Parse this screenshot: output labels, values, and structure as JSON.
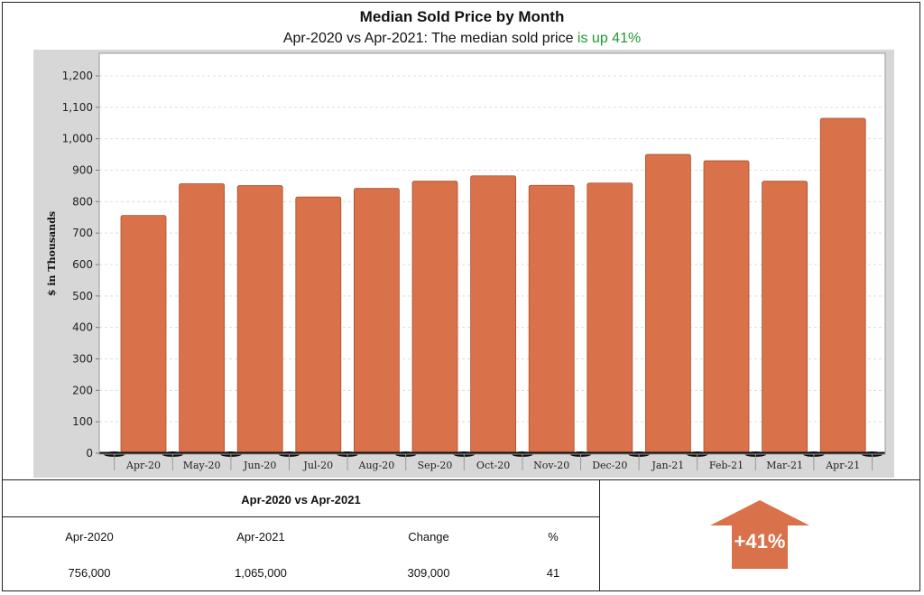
{
  "header": {
    "title": "Median Sold Price by Month",
    "subtitle_prefix": "Apr-2020 vs Apr-2021: The median sold price ",
    "subtitle_highlight": "is up 41%"
  },
  "colors": {
    "bar": "#d9714a",
    "highlight": "#1e9a32",
    "plot_bg": "#ffffff",
    "outer_bg": "#d7d7d7"
  },
  "chart_data": {
    "type": "bar",
    "title": "Median Sold Price by Month",
    "ylabel": "$ in Thousands",
    "xlabel": "",
    "ylim": [
      0,
      1250
    ],
    "yticks": [
      0,
      100,
      200,
      300,
      400,
      500,
      600,
      700,
      800,
      900,
      1000,
      1100,
      1200
    ],
    "ytick_labels": [
      "0",
      "100",
      "200",
      "300",
      "400",
      "500",
      "600",
      "700",
      "800",
      "900",
      "1,000",
      "1,100",
      "1,200"
    ],
    "categories": [
      "Apr-20",
      "May-20",
      "Jun-20",
      "Jul-20",
      "Aug-20",
      "Sep-20",
      "Oct-20",
      "Nov-20",
      "Dec-20",
      "Jan-21",
      "Feb-21",
      "Mar-21",
      "Apr-21"
    ],
    "values": [
      756,
      857,
      851,
      815,
      842,
      865,
      882,
      852,
      859,
      950,
      930,
      865,
      1065
    ],
    "grid": true,
    "legend": "none"
  },
  "summary": {
    "title": "Apr-2020 vs Apr-2021",
    "headers": [
      "Apr-2020",
      "Apr-2021",
      "Change",
      "%"
    ],
    "values": [
      "756,000",
      "1,065,000",
      "309,000",
      "41"
    ],
    "badge": "+41%",
    "badge_icon": "up-arrow-icon"
  }
}
